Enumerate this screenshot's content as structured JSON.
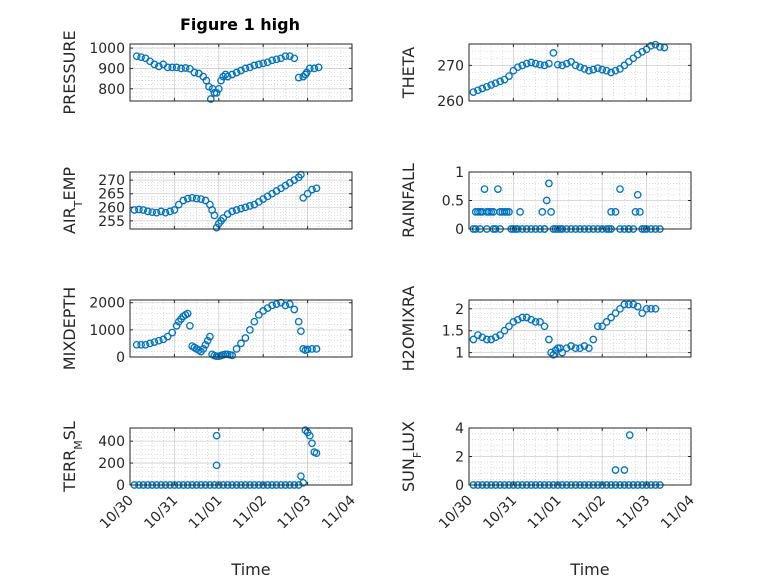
{
  "figure": {
    "title": "Figure 1 high"
  },
  "colors": {
    "marker": "#0072BD",
    "axes": "#262626",
    "grid": "#b0b0b0",
    "background": "#ffffff"
  },
  "chart_data": [
    {
      "type": "scatter",
      "id": "pressure",
      "ylabel": "PRESSURE",
      "yticks": [
        800,
        900,
        1000
      ],
      "ylim": [
        740,
        1020
      ],
      "xlabel": "",
      "xticks": [
        "10/30",
        "10/31",
        "11/01",
        "11/02",
        "11/03",
        "11/04"
      ],
      "xlim": [
        0,
        5
      ],
      "grid": true,
      "marker": "open-circle",
      "series": [
        {
          "x": [
            0.15,
            0.25,
            0.35,
            0.45,
            0.55,
            0.65,
            0.75,
            0.85,
            0.95,
            1.05,
            1.15,
            1.25,
            1.35,
            1.45,
            1.55,
            1.65,
            1.72,
            1.78,
            1.82,
            1.86,
            1.9,
            1.95,
            2.0,
            2.05,
            2.1,
            2.15,
            2.2,
            2.3,
            2.4,
            2.5,
            2.6,
            2.7,
            2.8,
            2.9,
            3.0,
            3.1,
            3.2,
            3.3,
            3.4,
            3.5,
            3.6,
            3.7,
            3.8,
            3.9,
            3.95,
            3.98,
            4.05,
            4.15,
            4.25
          ],
          "y": [
            960,
            955,
            950,
            935,
            920,
            910,
            920,
            905,
            905,
            905,
            900,
            902,
            898,
            880,
            875,
            860,
            840,
            810,
            750,
            800,
            780,
            780,
            800,
            840,
            860,
            870,
            860,
            870,
            880,
            890,
            900,
            905,
            915,
            920,
            925,
            930,
            940,
            945,
            950,
            960,
            960,
            950,
            855,
            860,
            870,
            880,
            900,
            900,
            905
          ]
        }
      ]
    },
    {
      "type": "scatter",
      "id": "theta",
      "ylabel": "THETA",
      "yticks": [
        260,
        270
      ],
      "ylim": [
        260,
        276
      ],
      "xlabel": "",
      "xticks": [
        "10/30",
        "10/31",
        "11/01",
        "11/02",
        "11/03",
        "11/04"
      ],
      "xlim": [
        0,
        5
      ],
      "grid": true,
      "marker": "open-circle",
      "series": [
        {
          "x": [
            0.1,
            0.2,
            0.3,
            0.4,
            0.5,
            0.6,
            0.7,
            0.8,
            0.9,
            1.0,
            1.1,
            1.2,
            1.3,
            1.4,
            1.5,
            1.6,
            1.7,
            1.8,
            1.9,
            2.0,
            2.1,
            2.2,
            2.3,
            2.4,
            2.5,
            2.6,
            2.7,
            2.8,
            2.9,
            3.0,
            3.1,
            3.2,
            3.3,
            3.4,
            3.5,
            3.6,
            3.7,
            3.8,
            3.9,
            4.0,
            4.1,
            4.2,
            4.3,
            4.4
          ],
          "y": [
            262.5,
            263,
            263.5,
            264,
            264.5,
            265,
            265.5,
            266,
            267,
            268.5,
            269.5,
            270,
            270.5,
            270.8,
            270.5,
            270.2,
            270,
            270.5,
            273.5,
            270.2,
            270,
            270.5,
            271,
            270,
            269.5,
            269,
            268.5,
            268.8,
            269.2,
            268.8,
            268.5,
            268,
            268.5,
            269,
            270,
            271,
            272,
            273,
            273.8,
            274.5,
            275.5,
            275.8,
            275.2,
            275
          ]
        }
      ]
    },
    {
      "type": "scatter",
      "id": "air-temp",
      "ylabel": "AIR_TEMP",
      "yticks": [
        255,
        260,
        265,
        270
      ],
      "ylim": [
        252,
        273
      ],
      "xlabel": "",
      "xticks": [
        "10/30",
        "10/31",
        "11/01",
        "11/02",
        "11/03",
        "11/04"
      ],
      "xlim": [
        0,
        5
      ],
      "grid": true,
      "marker": "open-circle",
      "series": [
        {
          "x": [
            0.1,
            0.2,
            0.3,
            0.4,
            0.5,
            0.6,
            0.7,
            0.8,
            0.9,
            1.0,
            1.1,
            1.2,
            1.3,
            1.4,
            1.5,
            1.6,
            1.7,
            1.8,
            1.85,
            1.9,
            1.95,
            2.0,
            2.05,
            2.1,
            2.2,
            2.3,
            2.4,
            2.5,
            2.6,
            2.7,
            2.8,
            2.9,
            3.0,
            3.1,
            3.2,
            3.3,
            3.4,
            3.5,
            3.6,
            3.7,
            3.8,
            3.85,
            3.9,
            4.0,
            4.1,
            4.2
          ],
          "y": [
            259,
            259.2,
            259,
            258.5,
            258.2,
            258,
            258.5,
            258,
            258.5,
            259,
            261,
            262.5,
            263.2,
            263.5,
            263.2,
            263,
            262.5,
            261,
            259,
            257,
            252.5,
            254,
            255,
            256,
            257.5,
            258.5,
            259,
            259.5,
            260,
            260.5,
            261,
            262,
            263,
            264,
            265,
            266,
            267,
            268,
            269,
            270,
            271,
            272,
            263.5,
            265,
            266.5,
            267
          ]
        }
      ]
    },
    {
      "type": "scatter",
      "id": "rainfall",
      "ylabel": "RAINFALL",
      "yticks": [
        0,
        0.5,
        1
      ],
      "ylim": [
        0,
        1
      ],
      "xlabel": "",
      "xticks": [
        "10/30",
        "10/31",
        "11/01",
        "11/02",
        "11/03",
        "11/04"
      ],
      "xlim": [
        0,
        5
      ],
      "grid": true,
      "marker": "open-circle",
      "series": [
        {
          "x": [
            0.1,
            0.15,
            0.2,
            0.25,
            0.3,
            0.35,
            0.4,
            0.45,
            0.5,
            0.55,
            0.6,
            0.65,
            0.7,
            0.75,
            0.8,
            0.85,
            0.9,
            0.95,
            1.0,
            1.05,
            1.1,
            1.2,
            1.3,
            1.4,
            1.5,
            1.6,
            1.7,
            1.75,
            1.8,
            1.85,
            1.9,
            1.95,
            2.0,
            2.05,
            2.1,
            2.2,
            2.3,
            2.4,
            2.5,
            2.6,
            2.7,
            2.8,
            2.9,
            3.0,
            3.1,
            3.15,
            3.2,
            3.3,
            3.4,
            3.5,
            3.6,
            3.7,
            3.75,
            3.8,
            3.85,
            3.9,
            3.95,
            4.0,
            4.1,
            4.2,
            4.3,
            0.15,
            0.25,
            0.4,
            0.55,
            0.7,
            1.15,
            1.65,
            1.7,
            3.2,
            3.4,
            3.6
          ],
          "y": [
            0,
            0.3,
            0.3,
            0.3,
            0.3,
            0.7,
            0.3,
            0.3,
            0.3,
            0.3,
            0,
            0.7,
            0.3,
            0.3,
            0.3,
            0.3,
            0.3,
            0,
            0,
            0,
            0,
            0,
            0,
            0,
            0,
            0,
            0,
            0.5,
            0.8,
            0.3,
            0,
            0,
            0,
            0,
            0,
            0,
            0,
            0,
            0,
            0,
            0,
            0,
            0,
            0,
            0,
            0,
            0,
            0.3,
            0,
            0,
            0,
            0,
            0.3,
            0.6,
            0.3,
            0,
            0,
            0,
            0,
            0,
            0,
            0,
            0,
            0,
            0,
            0,
            0.3,
            0.3,
            0,
            0.3,
            0.7,
            0
          ]
        }
      ]
    },
    {
      "type": "scatter",
      "id": "mixdepth",
      "ylabel": "MIXDEPTH",
      "yticks": [
        0,
        1000,
        2000
      ],
      "ylim": [
        0,
        2100
      ],
      "xlabel": "",
      "xticks": [
        "10/30",
        "10/31",
        "11/01",
        "11/02",
        "11/03",
        "11/04"
      ],
      "xlim": [
        0,
        5
      ],
      "grid": true,
      "marker": "open-circle",
      "series": [
        {
          "x": [
            0.15,
            0.25,
            0.35,
            0.45,
            0.55,
            0.65,
            0.75,
            0.85,
            0.95,
            1.05,
            1.1,
            1.15,
            1.2,
            1.25,
            1.3,
            1.35,
            1.4,
            1.45,
            1.5,
            1.55,
            1.6,
            1.65,
            1.7,
            1.75,
            1.8,
            1.85,
            1.9,
            1.95,
            2.0,
            2.05,
            2.1,
            2.15,
            2.2,
            2.25,
            2.3,
            2.4,
            2.5,
            2.6,
            2.7,
            2.8,
            2.9,
            3.0,
            3.1,
            3.2,
            3.3,
            3.4,
            3.5,
            3.6,
            3.7,
            3.8,
            3.85,
            3.9,
            3.95,
            4.0,
            4.1,
            4.2
          ],
          "y": [
            450,
            450,
            450,
            500,
            550,
            600,
            650,
            750,
            900,
            1150,
            1300,
            1400,
            1500,
            1550,
            1600,
            1150,
            400,
            350,
            300,
            250,
            200,
            300,
            450,
            600,
            750,
            100,
            50,
            30,
            30,
            50,
            80,
            100,
            100,
            80,
            60,
            300,
            500,
            700,
            1000,
            1300,
            1550,
            1700,
            1800,
            1900,
            1950,
            2000,
            1900,
            1950,
            1750,
            1300,
            950,
            300,
            250,
            280,
            300,
            300
          ]
        }
      ]
    },
    {
      "type": "scatter",
      "id": "h2omixra",
      "ylabel": "H2OMIXRA",
      "yticks": [
        1,
        1.5,
        2
      ],
      "ylim": [
        0.9,
        2.2
      ],
      "xlabel": "",
      "xticks": [
        "10/30",
        "10/31",
        "11/01",
        "11/02",
        "11/03",
        "11/04"
      ],
      "xlim": [
        0,
        5
      ],
      "grid": true,
      "marker": "open-circle",
      "series": [
        {
          "x": [
            0.1,
            0.2,
            0.3,
            0.4,
            0.5,
            0.6,
            0.7,
            0.8,
            0.9,
            1.0,
            1.1,
            1.2,
            1.3,
            1.4,
            1.5,
            1.6,
            1.7,
            1.8,
            1.85,
            1.9,
            1.95,
            2.0,
            2.05,
            2.1,
            2.2,
            2.3,
            2.4,
            2.5,
            2.6,
            2.7,
            2.8,
            2.9,
            3.0,
            3.1,
            3.2,
            3.3,
            3.4,
            3.5,
            3.6,
            3.7,
            3.8,
            3.9,
            4.0,
            4.1,
            4.2
          ],
          "y": [
            1.3,
            1.4,
            1.35,
            1.3,
            1.3,
            1.35,
            1.4,
            1.5,
            1.6,
            1.7,
            1.75,
            1.8,
            1.8,
            1.75,
            1.7,
            1.7,
            1.6,
            1.3,
            1.0,
            0.95,
            1.05,
            1.1,
            1.1,
            1.0,
            1.1,
            1.15,
            1.1,
            1.1,
            1.15,
            1.1,
            1.3,
            1.6,
            1.6,
            1.7,
            1.8,
            1.9,
            2.0,
            2.1,
            2.1,
            2.1,
            2.05,
            1.9,
            2.0,
            2.0,
            2.0
          ]
        }
      ]
    },
    {
      "type": "scatter",
      "id": "terr-msl",
      "ylabel": "TERR_MSL",
      "yticks": [
        0,
        200,
        400
      ],
      "ylim": [
        0,
        520
      ],
      "xlabel": "Time",
      "xticks": [
        "10/30",
        "10/31",
        "11/01",
        "11/02",
        "11/03",
        "11/04"
      ],
      "xlim": [
        0,
        5
      ],
      "grid": true,
      "marker": "open-circle",
      "series": [
        {
          "x": [
            0.1,
            0.2,
            0.3,
            0.4,
            0.5,
            0.6,
            0.7,
            0.8,
            0.9,
            1.0,
            1.1,
            1.2,
            1.3,
            1.4,
            1.5,
            1.6,
            1.7,
            1.8,
            1.9,
            1.95,
            2.0,
            2.1,
            2.2,
            2.3,
            2.4,
            2.5,
            2.6,
            2.7,
            2.8,
            2.9,
            3.0,
            3.1,
            3.2,
            3.3,
            3.4,
            3.5,
            3.6,
            3.7,
            3.8,
            3.85,
            3.9,
            3.95,
            4.0,
            4.05,
            4.1,
            4.15,
            4.2,
            1.95
          ],
          "y": [
            0,
            0,
            0,
            0,
            0,
            0,
            0,
            0,
            0,
            0,
            0,
            0,
            0,
            0,
            0,
            0,
            0,
            0,
            0,
            450,
            0,
            0,
            0,
            0,
            0,
            0,
            0,
            0,
            0,
            0,
            0,
            0,
            0,
            0,
            0,
            0,
            0,
            0,
            0,
            80,
            20,
            500,
            480,
            450,
            380,
            300,
            290,
            180
          ]
        }
      ]
    },
    {
      "type": "scatter",
      "id": "sun-flux",
      "ylabel": "SUN_FLUX",
      "yticks": [
        0,
        2,
        4
      ],
      "ylim": [
        0,
        4
      ],
      "xlabel": "Time",
      "xticks": [
        "10/30",
        "10/31",
        "11/01",
        "11/02",
        "11/03",
        "11/04"
      ],
      "xlim": [
        0,
        5
      ],
      "grid": true,
      "marker": "open-circle",
      "series": [
        {
          "x": [
            0.1,
            0.2,
            0.3,
            0.4,
            0.5,
            0.6,
            0.7,
            0.8,
            0.9,
            1.0,
            1.1,
            1.2,
            1.3,
            1.4,
            1.5,
            1.6,
            1.7,
            1.8,
            1.9,
            2.0,
            2.1,
            2.2,
            2.3,
            2.4,
            2.5,
            2.6,
            2.7,
            2.8,
            2.9,
            3.0,
            3.1,
            3.2,
            3.3,
            3.4,
            3.5,
            3.6,
            3.7,
            3.8,
            3.9,
            4.0,
            4.1,
            4.2,
            4.3,
            3.3,
            3.5,
            3.62
          ],
          "y": [
            0,
            0,
            0,
            0,
            0,
            0,
            0,
            0,
            0,
            0,
            0,
            0,
            0,
            0,
            0,
            0,
            0,
            0,
            0,
            0,
            0,
            0,
            0,
            0,
            0,
            0,
            0,
            0,
            0,
            0,
            0,
            0,
            0,
            0,
            0,
            0,
            0,
            0,
            0,
            0,
            0,
            0,
            0,
            1.05,
            1.05,
            3.5
          ]
        }
      ]
    }
  ]
}
